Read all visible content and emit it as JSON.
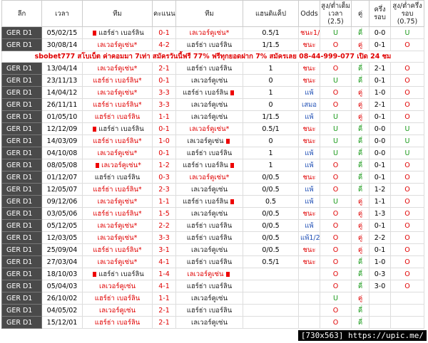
{
  "table": {
    "headers": [
      "ลีก",
      "เวลา",
      "ทีม",
      "คะแนน",
      "ทีม",
      "แฮนดิแค็ป",
      "Odds",
      "สูง/ต่ำเต็มเวลา (2.5)",
      "คู่",
      "ครึ่งรอบ",
      "สูง/ต่ำครึ่งรอบ (0.75)"
    ],
    "colors": {
      "U": "#1a9a1a",
      "O": "#e00000",
      "คี่": "#1a9a1a",
      "คู่": "#e00000",
      "ชนะ": "#e00000",
      "ชนะ1/2": "#e00000",
      "แพ้": "#1f4fb5",
      "แพ้1/2": "#1f4fb5",
      "เสมอ": "#1f4fb5"
    },
    "banner": "sbobet777 สโบเบ็ต ค่าคอมมา 7เท่า สมัครวันนี้ฟรี 77% ฟรีทุกยอดฝาก 7% สมัครเลย 08-44-999-077 เปิด 24 ชม",
    "banner_after": 2,
    "rows": [
      {
        "league": "GER D1",
        "date": "05/02/15",
        "home": "แฮร์ธ่า เบอร์ลิน",
        "score": "0-1",
        "away": "เลเวอร์คูเซ่น*",
        "hdp": "0.5/1",
        "odds": "ชนะ1/2",
        "ou": "U",
        "oe": "คี่",
        "ht": "0-0",
        "ou_ht": "U",
        "red": "away",
        "cards": [
          "home"
        ]
      },
      {
        "league": "GER D1",
        "date": "30/08/14",
        "home": "เลเวอร์คูเซ่น*",
        "score": "4-2",
        "away": "แฮร์ธ่า เบอร์ลิน",
        "hdp": "1/1.5",
        "odds": "ชนะ",
        "ou": "O",
        "oe": "คู่",
        "ht": "0-1",
        "ou_ht": "O",
        "red": "home",
        "cards": []
      },
      {
        "league": "GER D1",
        "date": "13/04/14",
        "home": "เลเวอร์คูเซ่น*",
        "score": "2-1",
        "away": "แฮร์ธ่า เบอร์ลิน",
        "hdp": "1",
        "odds": "ชนะ",
        "ou": "O",
        "oe": "คี่",
        "ht": "2-1",
        "ou_ht": "O",
        "red": "home",
        "cards": []
      },
      {
        "league": "GER D1",
        "date": "23/11/13",
        "home": "แฮร์ธ่า เบอร์ลิน*",
        "score": "0-1",
        "away": "เลเวอร์คูเซ่น",
        "hdp": "0",
        "odds": "ชนะ",
        "ou": "U",
        "oe": "คี่",
        "ht": "0-1",
        "ou_ht": "O",
        "red": "home",
        "cards": []
      },
      {
        "league": "GER D1",
        "date": "14/04/12",
        "home": "เลเวอร์คูเซ่น*",
        "score": "3-3",
        "away": "แฮร์ธ่า เบอร์ลิน",
        "hdp": "1",
        "odds": "แพ้",
        "ou": "O",
        "oe": "คู่",
        "ht": "1-0",
        "ou_ht": "O",
        "red": "home",
        "cards": [
          "away"
        ]
      },
      {
        "league": "GER D1",
        "date": "26/11/11",
        "home": "แฮร์ธ่า เบอร์ลิน*",
        "score": "3-3",
        "away": "เลเวอร์คูเซ่น",
        "hdp": "0",
        "odds": "เสมอ",
        "ou": "O",
        "oe": "คู่",
        "ht": "2-1",
        "ou_ht": "O",
        "red": "home",
        "cards": []
      },
      {
        "league": "GER D1",
        "date": "01/05/10",
        "home": "แฮร์ธ่า เบอร์ลิน",
        "score": "1-1",
        "away": "เลเวอร์คูเซ่น",
        "hdp": "1/1.5",
        "odds": "แพ้",
        "ou": "U",
        "oe": "คู่",
        "ht": "0-1",
        "ou_ht": "O",
        "red": "home",
        "cards": []
      },
      {
        "league": "GER D1",
        "date": "12/12/09",
        "home": "แฮร์ธ่า เบอร์ลิน",
        "score": "0-1",
        "away": "เลเวอร์คูเซ่น*",
        "hdp": "0.5/1",
        "odds": "ชนะ",
        "ou": "U",
        "oe": "คี่",
        "ht": "0-0",
        "ou_ht": "U",
        "red": "away",
        "cards": [
          "home"
        ]
      },
      {
        "league": "GER D1",
        "date": "14/03/09",
        "home": "แฮร์ธ่า เบอร์ลิน*",
        "score": "1-0",
        "away": "เลเวอร์คูเซ่น",
        "hdp": "0",
        "odds": "ชนะ",
        "ou": "U",
        "oe": "คี่",
        "ht": "0-0",
        "ou_ht": "U",
        "red": "home",
        "cards": [
          "away"
        ]
      },
      {
        "league": "GER D1",
        "date": "04/10/08",
        "home": "เลเวอร์คูเซ่น*",
        "score": "0-1",
        "away": "แฮร์ธ่า เบอร์ลิน",
        "hdp": "1",
        "odds": "แพ้",
        "ou": "U",
        "oe": "คี่",
        "ht": "0-0",
        "ou_ht": "U",
        "red": "home",
        "cards": []
      },
      {
        "league": "GER D1",
        "date": "08/05/08",
        "home": "เลเวอร์คูเซ่น*",
        "score": "1-2",
        "away": "แฮร์ธ่า เบอร์ลิน",
        "hdp": "1",
        "odds": "แพ้",
        "ou": "O",
        "oe": "คี่",
        "ht": "0-1",
        "ou_ht": "O",
        "red": "home",
        "cards": [
          "home",
          "away"
        ]
      },
      {
        "league": "GER D1",
        "date": "01/12/07",
        "home": "แฮร์ธ่า เบอร์ลิน",
        "score": "0-3",
        "away": "เลเวอร์คูเซ่น*",
        "hdp": "0/0.5",
        "odds": "ชนะ",
        "ou": "O",
        "oe": "คี่",
        "ht": "0-1",
        "ou_ht": "O",
        "red": "away",
        "cards": []
      },
      {
        "league": "GER D1",
        "date": "12/05/07",
        "home": "แฮร์ธ่า เบอร์ลิน*",
        "score": "2-3",
        "away": "เลเวอร์คูเซ่น",
        "hdp": "0/0.5",
        "odds": "แพ้",
        "ou": "O",
        "oe": "คี่",
        "ht": "1-2",
        "ou_ht": "O",
        "red": "home",
        "cards": []
      },
      {
        "league": "GER D1",
        "date": "09/12/06",
        "home": "เลเวอร์คูเซ่น*",
        "score": "1-1",
        "away": "แฮร์ธ่า เบอร์ลิน",
        "hdp": "0.5",
        "odds": "แพ้",
        "ou": "U",
        "oe": "คู่",
        "ht": "1-1",
        "ou_ht": "O",
        "red": "home",
        "cards": [
          "away"
        ]
      },
      {
        "league": "GER D1",
        "date": "03/05/06",
        "home": "แฮร์ธ่า เบอร์ลิน*",
        "score": "1-5",
        "away": "เลเวอร์คูเซ่น",
        "hdp": "0/0.5",
        "odds": "ชนะ",
        "ou": "O",
        "oe": "คู่",
        "ht": "1-3",
        "ou_ht": "O",
        "red": "home",
        "cards": []
      },
      {
        "league": "GER D1",
        "date": "05/12/05",
        "home": "เลเวอร์คูเซ่น*",
        "score": "2-2",
        "away": "แฮร์ธ่า เบอร์ลิน",
        "hdp": "0/0.5",
        "odds": "แพ้",
        "ou": "O",
        "oe": "คู่",
        "ht": "0-1",
        "ou_ht": "O",
        "red": "home",
        "cards": []
      },
      {
        "league": "GER D1",
        "date": "12/03/05",
        "home": "เลเวอร์คูเซ่น*",
        "score": "3-3",
        "away": "แฮร์ธ่า เบอร์ลิน",
        "hdp": "0/0.5",
        "odds": "แพ้1/2",
        "ou": "O",
        "oe": "คู่",
        "ht": "2-2",
        "ou_ht": "O",
        "red": "home",
        "cards": []
      },
      {
        "league": "GER D1",
        "date": "25/09/04",
        "home": "แฮร์ธ่า เบอร์ลิน*",
        "score": "3-1",
        "away": "เลเวอร์คูเซ่น",
        "hdp": "0/0.5",
        "odds": "ชนะ",
        "ou": "O",
        "oe": "คู่",
        "ht": "0-1",
        "ou_ht": "O",
        "red": "home",
        "cards": []
      },
      {
        "league": "GER D1",
        "date": "27/03/04",
        "home": "เลเวอร์คูเซ่น*",
        "score": "4-1",
        "away": "แฮร์ธ่า เบอร์ลิน",
        "hdp": "0.5/1",
        "odds": "ชนะ",
        "ou": "O",
        "oe": "คี่",
        "ht": "1-0",
        "ou_ht": "O",
        "red": "home",
        "cards": []
      },
      {
        "league": "GER D1",
        "date": "18/10/03",
        "home": "แฮร์ธ่า เบอร์ลิน",
        "score": "1-4",
        "away": "เลเวอร์คูเซ่น",
        "ou": "O",
        "oe": "คี่",
        "ht": "0-3",
        "ou_ht": "O",
        "red": "away",
        "cards": [
          "home",
          "away"
        ]
      },
      {
        "league": "GER D1",
        "date": "05/04/03",
        "home": "เลเวอร์คูเซ่น",
        "score": "4-1",
        "away": "แฮร์ธ่า เบอร์ลิน",
        "ou": "O",
        "oe": "คี่",
        "ht": "3-0",
        "ou_ht": "O",
        "red": "home",
        "cards": []
      },
      {
        "league": "GER D1",
        "date": "26/10/02",
        "home": "แฮร์ธ่า เบอร์ลิน",
        "score": "1-1",
        "away": "เลเวอร์คูเซ่น",
        "ou": "U",
        "oe": "คู่",
        "red": "home",
        "cards": []
      },
      {
        "league": "GER D1",
        "date": "04/05/02",
        "home": "เลเวอร์คูเซ่น",
        "score": "2-1",
        "away": "แฮร์ธ่า เบอร์ลิน",
        "ou": "O",
        "oe": "คี่",
        "red": "home",
        "cards": []
      },
      {
        "league": "GER D1",
        "date": "15/12/01",
        "home": "แฮร์ธ่า เบอร์ลิน",
        "score": "2-1",
        "away": "เลเวอร์คูเซ่น",
        "ou": "O",
        "oe": "คี่",
        "red": "home",
        "cards": []
      }
    ]
  },
  "footer": "[730x563] https://upic.me/"
}
